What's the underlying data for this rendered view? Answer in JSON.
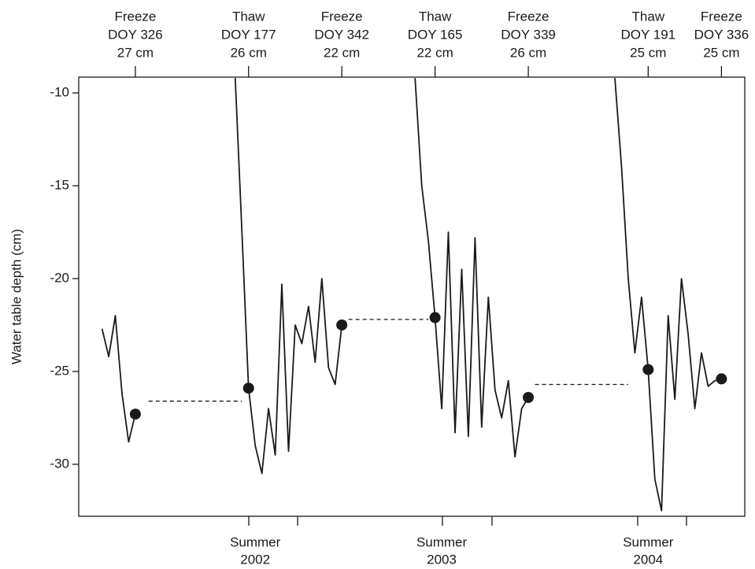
{
  "chart_data": {
    "type": "line",
    "y_label": "Water table depth (cm)",
    "ylim": [
      -32.8,
      -9.15
    ],
    "yticks": [
      -10,
      -15,
      -20,
      -25,
      -30
    ],
    "series": [
      {
        "style": "line",
        "color": "#1a1a1a",
        "values": [
          null,
          null,
          null,
          -22.7,
          -24.2,
          -22.0,
          -26.2,
          -28.8,
          -27.3,
          null,
          null,
          null,
          null,
          null,
          null,
          null,
          null,
          null,
          null,
          null,
          null,
          null,
          null,
          -9.2,
          -17.5,
          -25.9,
          -29.0,
          -30.5,
          -27.0,
          -29.5,
          -20.3,
          -29.3,
          -22.5,
          -23.5,
          -21.5,
          -24.5,
          -20.0,
          -24.8,
          -25.7,
          -22.5,
          null,
          null,
          null,
          null,
          null,
          null,
          null,
          null,
          null,
          null,
          -9.2,
          -15.0,
          -18.0,
          -22.1,
          -27.0,
          -17.5,
          -28.3,
          -19.5,
          -28.5,
          -17.8,
          -28.0,
          -21.0,
          -26.0,
          -27.5,
          -25.5,
          -29.6,
          -27.0,
          -26.4,
          null,
          null,
          null,
          null,
          null,
          null,
          null,
          null,
          null,
          null,
          null,
          null,
          -9.2,
          -14.0,
          -20.0,
          -24.0,
          -21.0,
          -24.9,
          -30.8,
          -32.5,
          -22.0,
          -26.5,
          -20.0,
          -23.0,
          -27.0,
          -24.0,
          -25.8,
          -25.5,
          -25.4,
          null,
          null,
          null
        ]
      },
      {
        "style": "points",
        "color": "#1a1a1a",
        "values": [
          null,
          null,
          null,
          null,
          null,
          null,
          null,
          null,
          -27.3,
          null,
          null,
          null,
          null,
          null,
          null,
          null,
          null,
          null,
          null,
          null,
          null,
          null,
          null,
          null,
          null,
          -25.9,
          null,
          null,
          null,
          null,
          null,
          null,
          null,
          null,
          null,
          null,
          null,
          null,
          null,
          -22.5,
          null,
          null,
          null,
          null,
          null,
          null,
          null,
          null,
          null,
          null,
          null,
          null,
          null,
          -22.1,
          null,
          null,
          null,
          null,
          null,
          null,
          null,
          null,
          null,
          null,
          null,
          null,
          null,
          -26.4,
          null,
          null,
          null,
          null,
          null,
          null,
          null,
          null,
          null,
          null,
          null,
          null,
          null,
          null,
          null,
          null,
          null,
          -24.9,
          null,
          null,
          null,
          null,
          null,
          null,
          null,
          null,
          null,
          null,
          -25.4,
          null,
          null,
          null
        ]
      },
      {
        "style": "dashed",
        "color": "#1a1a1a",
        "values": [
          null,
          null,
          null,
          null,
          null,
          null,
          null,
          null,
          null,
          null,
          -26.6,
          -26.6,
          -26.6,
          -26.6,
          -26.6,
          -26.6,
          -26.6,
          -26.6,
          -26.6,
          -26.6,
          -26.6,
          -26.6,
          -26.6,
          -26.6,
          -26.6,
          null,
          null,
          null,
          null,
          null,
          null,
          null,
          null,
          null,
          null,
          null,
          null,
          null,
          null,
          null,
          -22.2,
          -22.2,
          -22.2,
          -22.2,
          -22.2,
          -22.2,
          -22.2,
          -22.2,
          -22.2,
          -22.2,
          -22.2,
          -22.2,
          -22.2,
          null,
          null,
          null,
          null,
          null,
          null,
          null,
          null,
          null,
          null,
          null,
          null,
          null,
          null,
          null,
          -25.7,
          -25.7,
          -25.7,
          -25.7,
          -25.7,
          -25.7,
          -25.7,
          -25.7,
          -25.7,
          -25.7,
          -25.7,
          -25.7,
          -25.7,
          -25.7,
          -25.7,
          null,
          null,
          null,
          null,
          null,
          null,
          null,
          null,
          null,
          null,
          null,
          null,
          null,
          null,
          null,
          null,
          null
        ]
      }
    ],
    "top_labels": [
      null,
      null,
      null,
      null,
      null,
      null,
      null,
      null,
      [
        "Freeze",
        "DOY 326",
        "27 cm"
      ],
      null,
      null,
      null,
      null,
      null,
      null,
      null,
      null,
      null,
      null,
      null,
      null,
      null,
      null,
      null,
      null,
      [
        "Thaw",
        "DOY 177",
        "26 cm"
      ],
      null,
      null,
      null,
      null,
      null,
      null,
      null,
      null,
      null,
      null,
      null,
      null,
      null,
      [
        "Freeze",
        "DOY 342",
        "22 cm"
      ],
      null,
      null,
      null,
      null,
      null,
      null,
      null,
      null,
      null,
      null,
      null,
      null,
      null,
      [
        "Thaw",
        "DOY 165",
        "22 cm"
      ],
      null,
      null,
      null,
      null,
      null,
      null,
      null,
      null,
      null,
      null,
      null,
      null,
      null,
      [
        "Freeze",
        "DOY 339",
        "26 cm"
      ],
      null,
      null,
      null,
      null,
      null,
      null,
      null,
      null,
      null,
      null,
      null,
      null,
      null,
      null,
      null,
      null,
      null,
      [
        "Thaw",
        "DOY 191",
        "25 cm"
      ],
      null,
      null,
      null,
      null,
      null,
      null,
      null,
      null,
      null,
      null,
      [
        "Freeze",
        "DOY 336",
        "25 cm"
      ],
      null,
      null,
      null
    ],
    "bottom_labels": [
      null,
      null,
      null,
      null,
      null,
      null,
      null,
      null,
      null,
      null,
      null,
      null,
      null,
      null,
      null,
      null,
      null,
      null,
      null,
      null,
      null,
      null,
      null,
      null,
      null,
      null,
      [
        "Summer",
        "2002"
      ],
      null,
      null,
      null,
      null,
      null,
      null,
      null,
      null,
      null,
      null,
      null,
      null,
      null,
      null,
      null,
      null,
      null,
      null,
      null,
      null,
      null,
      null,
      null,
      null,
      null,
      null,
      null,
      [
        "Summer",
        "2003"
      ],
      null,
      null,
      null,
      null,
      null,
      null,
      null,
      null,
      null,
      null,
      null,
      null,
      null,
      null,
      null,
      null,
      null,
      null,
      null,
      null,
      null,
      null,
      null,
      null,
      null,
      null,
      null,
      null,
      null,
      null,
      [
        "Summer",
        "2004"
      ],
      null,
      null,
      null,
      null,
      null,
      null,
      null,
      null,
      null,
      null,
      null,
      null,
      null,
      null
    ]
  }
}
